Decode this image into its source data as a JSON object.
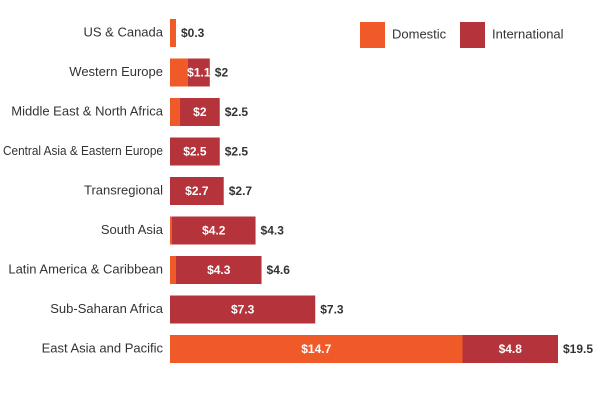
{
  "chart_data": {
    "type": "stacked-bar-horizontal",
    "categories": [
      "US & Canada",
      "Western Europe",
      "Middle East & North Africa",
      "Central Asia & Eastern Europe",
      "Transregional",
      "South Asia",
      "Latin America & Caribbean",
      "Sub-Saharan Africa",
      "East Asia and Pacific"
    ],
    "series": [
      {
        "name": "Domestic",
        "color": "#f05a28",
        "values": [
          0.3,
          0.9,
          0.5,
          0,
          0,
          0.1,
          0.3,
          0,
          14.7
        ],
        "value_labels": [
          null,
          null,
          null,
          null,
          null,
          null,
          null,
          null,
          "$14.7"
        ]
      },
      {
        "name": "International",
        "color": "#b5333a",
        "values": [
          0,
          1.1,
          2,
          2.5,
          2.7,
          4.2,
          4.3,
          7.3,
          4.8
        ],
        "value_labels": [
          null,
          "$1.1",
          "$2",
          "$2.5",
          "$2.7",
          "$4.2",
          "$4.3",
          "$7.3",
          "$4.8"
        ]
      }
    ],
    "totals": {
      "values": [
        0.3,
        2,
        2.5,
        2.5,
        2.7,
        4.3,
        4.6,
        7.3,
        19.5
      ],
      "value_labels": [
        "$0.3",
        "$2",
        "$2.5",
        "$2.5",
        "$2.7",
        "$4.3",
        "$4.6",
        "$7.3",
        "$19.5"
      ]
    },
    "legend": "top-right"
  }
}
